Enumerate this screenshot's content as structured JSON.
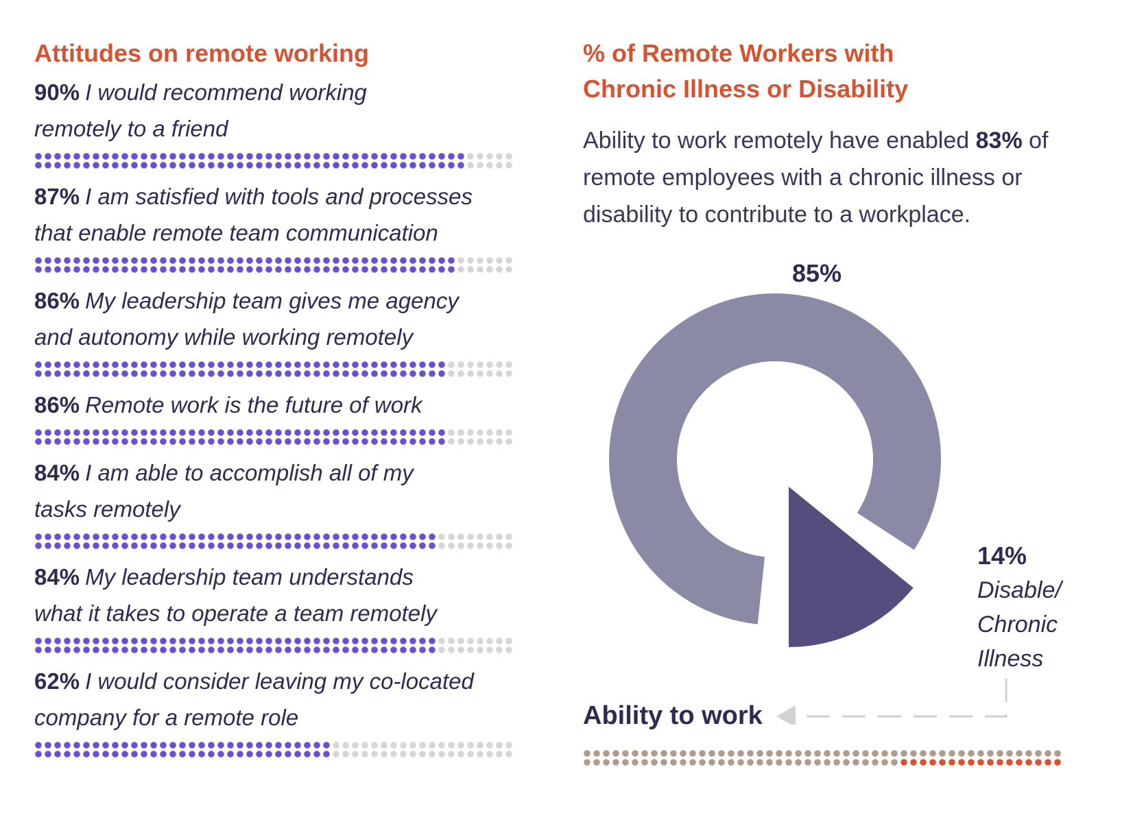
{
  "left": {
    "title": "Attitudes on remote working",
    "items": [
      {
        "pct": "90%",
        "text": "I would recommend working remotely to a friend",
        "lines": [
          "I would recommend working",
          "remotely to a friend"
        ],
        "value": 90
      },
      {
        "pct": "87%",
        "text": "I am satisfied with tools and processes that enable remote team communication",
        "lines": [
          "I am satisfied with tools and processes",
          "that enable remote team communication"
        ],
        "value": 87
      },
      {
        "pct": "86%",
        "text": "My leadership team gives me agency and autonomy while working remotely",
        "lines": [
          "My leadership team gives me agency",
          "and autonomy while working remotely"
        ],
        "value": 86
      },
      {
        "pct": "86%",
        "text": "Remote work is the future of work",
        "lines": [
          "Remote work is the future of work"
        ],
        "value": 86
      },
      {
        "pct": "84%",
        "text": "I am able to accomplish all of my tasks remotely",
        "lines": [
          "I am able to accomplish all of my",
          "tasks remotely"
        ],
        "value": 84
      },
      {
        "pct": "84%",
        "text": "My leadership team understands what it takes to operate a team remotely",
        "lines": [
          "My leadership team understands",
          "what it takes to operate a team remotely"
        ],
        "value": 84
      },
      {
        "pct": "62%",
        "text": "I would consider leaving my co-located company for a remote role",
        "lines": [
          "I would consider leaving my co-located",
          "company for a remote role"
        ],
        "value": 62
      }
    ]
  },
  "right": {
    "title_line1": "% of Remote Workers with",
    "title_line2": "Chronic Illness or Disability",
    "subtitle_before": "Ability to work remotely have enabled ",
    "subtitle_bold": "83%",
    "subtitle_after": " of remote employees with a chronic illness or disability to contribute to a workplace.",
    "pie_main_label": "85%",
    "pie_small_label": "14%",
    "pie_small_caption": "Disable/ Chronic Illness",
    "ability_label": "Ability to work",
    "bottom_bar_value": 83
  },
  "colors": {
    "title": "#d8522f",
    "dot_filled": "#6a4fd1",
    "dot_empty": "#d6d6d6",
    "pie_large": "#8a8aa6",
    "pie_small": "#564c7d",
    "bottom_dot_tan": "#b09c8e",
    "bottom_dot_orange": "#d8522f",
    "text": "#2f2a4f"
  },
  "chart_data": [
    {
      "type": "bar",
      "title": "Attitudes on remote working",
      "categories": [
        "I would recommend working remotely to a friend",
        "I am satisfied with tools and processes that enable remote team communication",
        "My leadership team gives me agency and autonomy while working remotely",
        "Remote work is the future of work",
        "I am able to accomplish all of my tasks remotely",
        "My leadership team understands what it takes to operate a team remotely",
        "I would consider leaving my co-located company for a remote role"
      ],
      "values": [
        90,
        87,
        86,
        86,
        84,
        84,
        62
      ],
      "unit": "%",
      "ylim": [
        0,
        100
      ]
    },
    {
      "type": "pie",
      "title": "% of Remote Workers with Chronic Illness or Disability",
      "slices": [
        {
          "label": "",
          "value": 85
        },
        {
          "label": "Disable/ Chronic Illness",
          "value": 14
        }
      ]
    }
  ]
}
